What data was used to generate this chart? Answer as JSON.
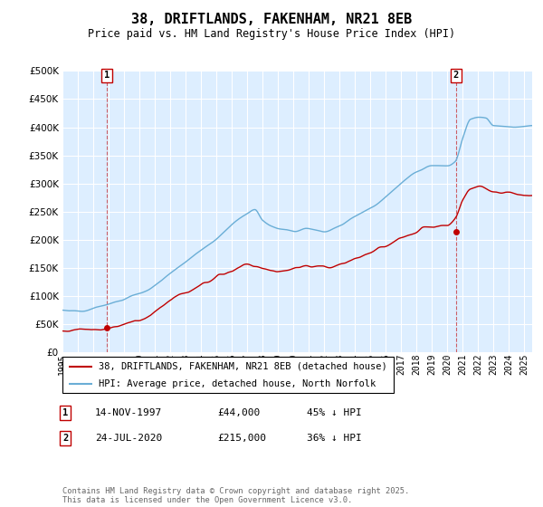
{
  "title": "38, DRIFTLANDS, FAKENHAM, NR21 8EB",
  "subtitle": "Price paid vs. HM Land Registry's House Price Index (HPI)",
  "legend_line1": "38, DRIFTLANDS, FAKENHAM, NR21 8EB (detached house)",
  "legend_line2": "HPI: Average price, detached house, North Norfolk",
  "annotation1_date": "14-NOV-1997",
  "annotation1_price": "£44,000",
  "annotation1_hpi": "45% ↓ HPI",
  "annotation2_date": "24-JUL-2020",
  "annotation2_price": "£215,000",
  "annotation2_hpi": "36% ↓ HPI",
  "footer": "Contains HM Land Registry data © Crown copyright and database right 2025.\nThis data is licensed under the Open Government Licence v3.0.",
  "hpi_color": "#6aaed6",
  "price_color": "#c00000",
  "annotation_color": "#c00000",
  "vline_color": "#c00000",
  "ylim": [
    0,
    500000
  ],
  "yticks": [
    0,
    50000,
    100000,
    150000,
    200000,
    250000,
    300000,
    350000,
    400000,
    450000,
    500000
  ],
  "plot_bg": "#ddeeff",
  "background_color": "#ffffff",
  "grid_color": "#ffffff",
  "sale1_year": 1997.87,
  "sale1_value": 44000,
  "sale2_year": 2020.56,
  "sale2_value": 215000,
  "xlim_start": 1995,
  "xlim_end": 2025.5
}
